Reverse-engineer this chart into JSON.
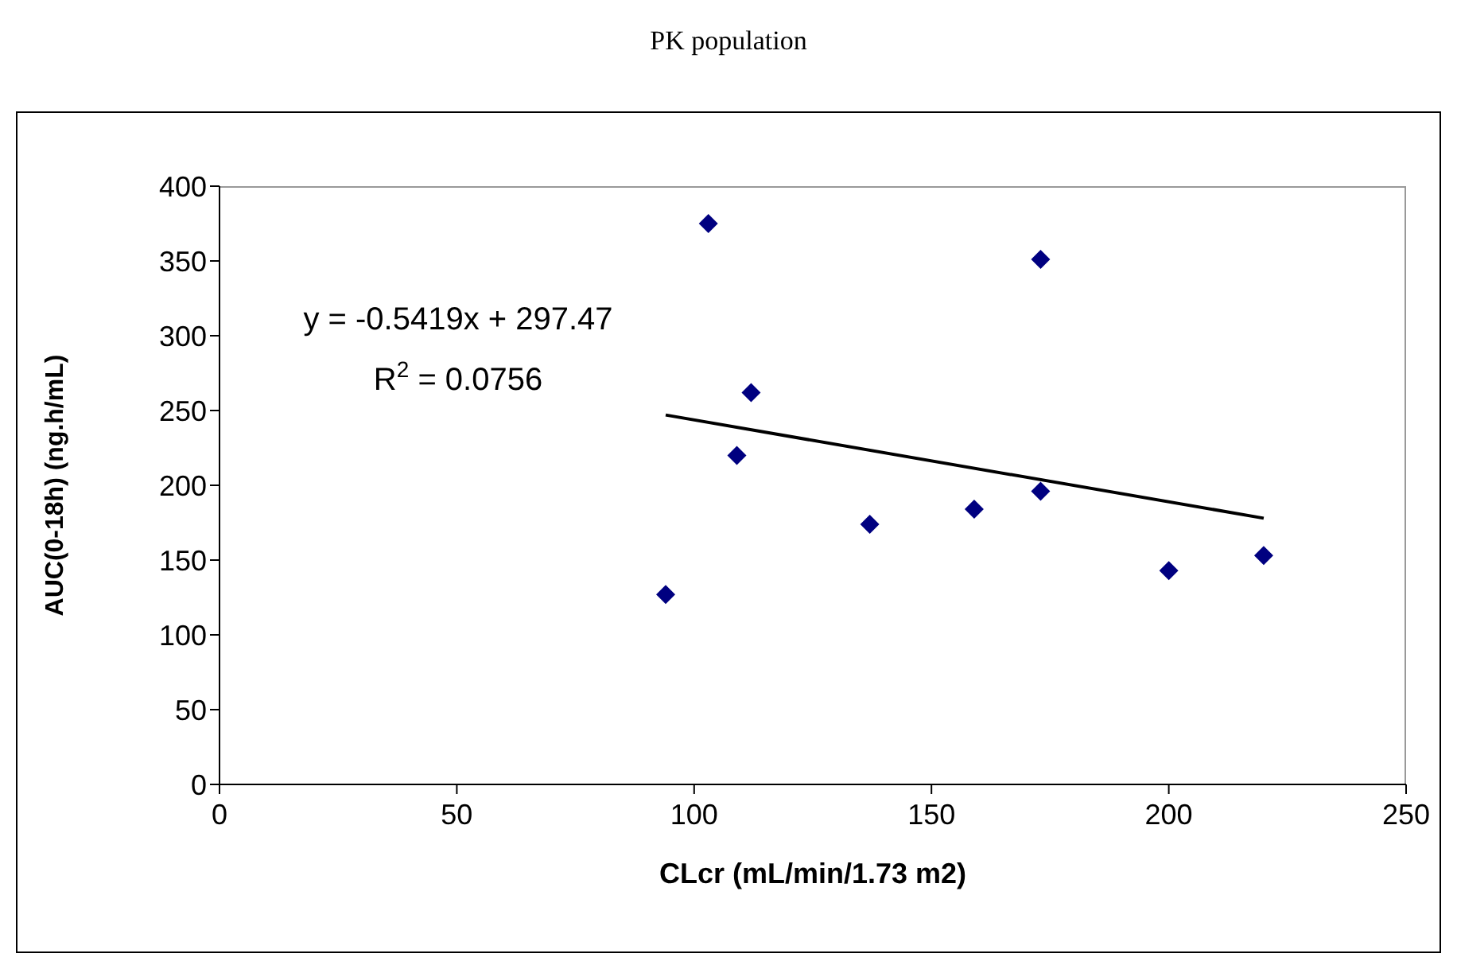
{
  "chart_data": {
    "type": "scatter",
    "title": "PK population",
    "xlabel": "CLcr (mL/min/1.73 m2)",
    "ylabel": "AUC(0-18h) (ng.h/mL)",
    "xlim": [
      0,
      250
    ],
    "xticks": [
      0,
      50,
      100,
      150,
      200,
      250
    ],
    "ylim": [
      0,
      400
    ],
    "yticks": [
      0,
      50,
      100,
      150,
      200,
      250,
      300,
      350,
      400
    ],
    "marker": "diamond",
    "grid": false,
    "annotations": [
      "y = -0.5419x + 297.47",
      "R$^{2}$ = 0.0756"
    ],
    "series": [
      {
        "color": "#000080",
        "x": [
          94,
          103,
          109,
          112,
          137,
          159,
          173,
          173,
          200,
          220
        ],
        "values": [
          127,
          375,
          220,
          262,
          174,
          184,
          196,
          351,
          143,
          153
        ]
      },
      {
        "type": "line",
        "marker": "none",
        "color": "#000000",
        "x": [
          94,
          220
        ],
        "values": [
          247,
          178
        ]
      }
    ]
  }
}
